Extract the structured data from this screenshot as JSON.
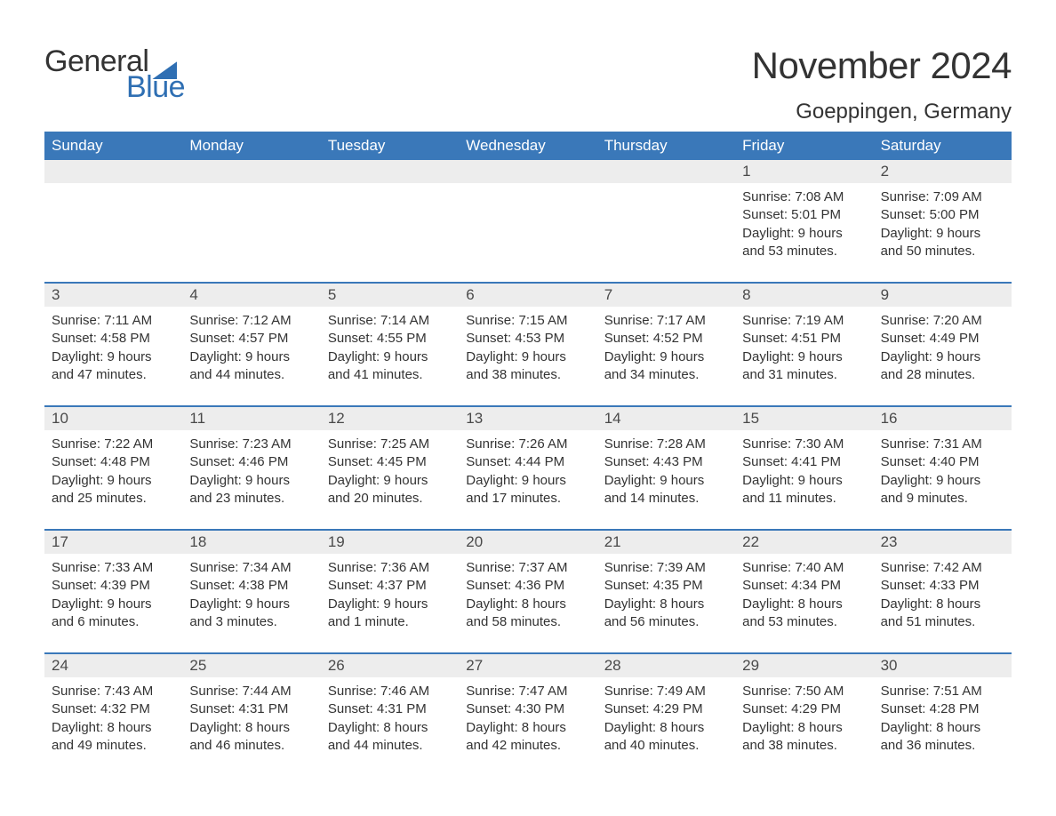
{
  "brand": {
    "line1": "General",
    "line2": "Blue",
    "accent_color": "#2f6fb3"
  },
  "title": "November 2024",
  "location": "Goeppingen, Germany",
  "colors": {
    "header_bg": "#3a78b9",
    "header_text": "#ffffff",
    "daynum_bg": "#ededed",
    "text": "#333333",
    "rule": "#3a78b9",
    "background": "#ffffff"
  },
  "typography": {
    "title_fontsize": 42,
    "location_fontsize": 24,
    "header_fontsize": 17,
    "daynum_fontsize": 17,
    "body_fontsize": 15
  },
  "day_names": [
    "Sunday",
    "Monday",
    "Tuesday",
    "Wednesday",
    "Thursday",
    "Friday",
    "Saturday"
  ],
  "weeks": [
    [
      null,
      null,
      null,
      null,
      null,
      {
        "n": "1",
        "sunrise": "7:08 AM",
        "sunset": "5:01 PM",
        "dl1": "Daylight: 9 hours",
        "dl2": "and 53 minutes."
      },
      {
        "n": "2",
        "sunrise": "7:09 AM",
        "sunset": "5:00 PM",
        "dl1": "Daylight: 9 hours",
        "dl2": "and 50 minutes."
      }
    ],
    [
      {
        "n": "3",
        "sunrise": "7:11 AM",
        "sunset": "4:58 PM",
        "dl1": "Daylight: 9 hours",
        "dl2": "and 47 minutes."
      },
      {
        "n": "4",
        "sunrise": "7:12 AM",
        "sunset": "4:57 PM",
        "dl1": "Daylight: 9 hours",
        "dl2": "and 44 minutes."
      },
      {
        "n": "5",
        "sunrise": "7:14 AM",
        "sunset": "4:55 PM",
        "dl1": "Daylight: 9 hours",
        "dl2": "and 41 minutes."
      },
      {
        "n": "6",
        "sunrise": "7:15 AM",
        "sunset": "4:53 PM",
        "dl1": "Daylight: 9 hours",
        "dl2": "and 38 minutes."
      },
      {
        "n": "7",
        "sunrise": "7:17 AM",
        "sunset": "4:52 PM",
        "dl1": "Daylight: 9 hours",
        "dl2": "and 34 minutes."
      },
      {
        "n": "8",
        "sunrise": "7:19 AM",
        "sunset": "4:51 PM",
        "dl1": "Daylight: 9 hours",
        "dl2": "and 31 minutes."
      },
      {
        "n": "9",
        "sunrise": "7:20 AM",
        "sunset": "4:49 PM",
        "dl1": "Daylight: 9 hours",
        "dl2": "and 28 minutes."
      }
    ],
    [
      {
        "n": "10",
        "sunrise": "7:22 AM",
        "sunset": "4:48 PM",
        "dl1": "Daylight: 9 hours",
        "dl2": "and 25 minutes."
      },
      {
        "n": "11",
        "sunrise": "7:23 AM",
        "sunset": "4:46 PM",
        "dl1": "Daylight: 9 hours",
        "dl2": "and 23 minutes."
      },
      {
        "n": "12",
        "sunrise": "7:25 AM",
        "sunset": "4:45 PM",
        "dl1": "Daylight: 9 hours",
        "dl2": "and 20 minutes."
      },
      {
        "n": "13",
        "sunrise": "7:26 AM",
        "sunset": "4:44 PM",
        "dl1": "Daylight: 9 hours",
        "dl2": "and 17 minutes."
      },
      {
        "n": "14",
        "sunrise": "7:28 AM",
        "sunset": "4:43 PM",
        "dl1": "Daylight: 9 hours",
        "dl2": "and 14 minutes."
      },
      {
        "n": "15",
        "sunrise": "7:30 AM",
        "sunset": "4:41 PM",
        "dl1": "Daylight: 9 hours",
        "dl2": "and 11 minutes."
      },
      {
        "n": "16",
        "sunrise": "7:31 AM",
        "sunset": "4:40 PM",
        "dl1": "Daylight: 9 hours",
        "dl2": "and 9 minutes."
      }
    ],
    [
      {
        "n": "17",
        "sunrise": "7:33 AM",
        "sunset": "4:39 PM",
        "dl1": "Daylight: 9 hours",
        "dl2": "and 6 minutes."
      },
      {
        "n": "18",
        "sunrise": "7:34 AM",
        "sunset": "4:38 PM",
        "dl1": "Daylight: 9 hours",
        "dl2": "and 3 minutes."
      },
      {
        "n": "19",
        "sunrise": "7:36 AM",
        "sunset": "4:37 PM",
        "dl1": "Daylight: 9 hours",
        "dl2": "and 1 minute."
      },
      {
        "n": "20",
        "sunrise": "7:37 AM",
        "sunset": "4:36 PM",
        "dl1": "Daylight: 8 hours",
        "dl2": "and 58 minutes."
      },
      {
        "n": "21",
        "sunrise": "7:39 AM",
        "sunset": "4:35 PM",
        "dl1": "Daylight: 8 hours",
        "dl2": "and 56 minutes."
      },
      {
        "n": "22",
        "sunrise": "7:40 AM",
        "sunset": "4:34 PM",
        "dl1": "Daylight: 8 hours",
        "dl2": "and 53 minutes."
      },
      {
        "n": "23",
        "sunrise": "7:42 AM",
        "sunset": "4:33 PM",
        "dl1": "Daylight: 8 hours",
        "dl2": "and 51 minutes."
      }
    ],
    [
      {
        "n": "24",
        "sunrise": "7:43 AM",
        "sunset": "4:32 PM",
        "dl1": "Daylight: 8 hours",
        "dl2": "and 49 minutes."
      },
      {
        "n": "25",
        "sunrise": "7:44 AM",
        "sunset": "4:31 PM",
        "dl1": "Daylight: 8 hours",
        "dl2": "and 46 minutes."
      },
      {
        "n": "26",
        "sunrise": "7:46 AM",
        "sunset": "4:31 PM",
        "dl1": "Daylight: 8 hours",
        "dl2": "and 44 minutes."
      },
      {
        "n": "27",
        "sunrise": "7:47 AM",
        "sunset": "4:30 PM",
        "dl1": "Daylight: 8 hours",
        "dl2": "and 42 minutes."
      },
      {
        "n": "28",
        "sunrise": "7:49 AM",
        "sunset": "4:29 PM",
        "dl1": "Daylight: 8 hours",
        "dl2": "and 40 minutes."
      },
      {
        "n": "29",
        "sunrise": "7:50 AM",
        "sunset": "4:29 PM",
        "dl1": "Daylight: 8 hours",
        "dl2": "and 38 minutes."
      },
      {
        "n": "30",
        "sunrise": "7:51 AM",
        "sunset": "4:28 PM",
        "dl1": "Daylight: 8 hours",
        "dl2": "and 36 minutes."
      }
    ]
  ],
  "labels": {
    "sunrise_prefix": "Sunrise: ",
    "sunset_prefix": "Sunset: "
  }
}
